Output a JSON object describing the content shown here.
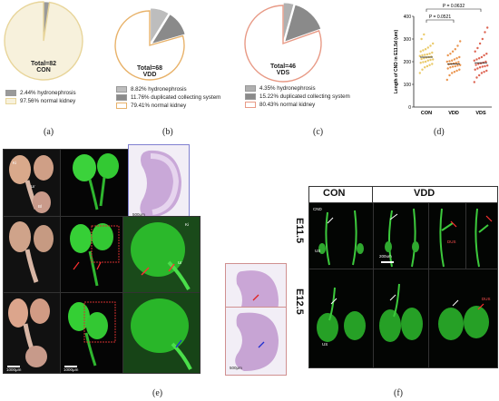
{
  "panel_labels": {
    "a": "(a)",
    "b": "(b)",
    "c": "(c)",
    "d": "(d)",
    "e": "(e)",
    "f": "(f)"
  },
  "pies": [
    {
      "group": "CON",
      "total": "Total=82",
      "colors": [
        "#8a8a8a",
        "#f5e7b8"
      ],
      "slices": [
        {
          "pct": 2.44,
          "label": "2.44%  hydronephrosis",
          "color": "#9a9a9a"
        },
        {
          "pct": 97.56,
          "label": "97.56%  normal kidney",
          "color": "#f7f1dc"
        }
      ],
      "edge": "#e8d59a"
    },
    {
      "group": "VDD",
      "total": "Total=68",
      "slices": [
        {
          "pct": 8.82,
          "label": "8.82% hydronephrosis",
          "color": "#bdbdbd"
        },
        {
          "pct": 11.76,
          "label": "11.76% duplicated collecting system",
          "color": "#8a8a8a"
        },
        {
          "pct": 79.41,
          "label": "79.41% normal kidney",
          "color": "#ffffff"
        }
      ],
      "edge": "#e8b26a"
    },
    {
      "group": "VDS",
      "total": "Total=46",
      "slices": [
        {
          "pct": 4.35,
          "label": "4.35% hydronephrosis",
          "color": "#b0b0b0"
        },
        {
          "pct": 15.22,
          "label": "15.22% duplicated collecting system",
          "color": "#8a8a8a"
        },
        {
          "pct": 80.43,
          "label": "80.43% normal kidney",
          "color": "#ffffff"
        }
      ],
      "edge": "#e89a86"
    }
  ],
  "chart_data": {
    "type": "scatter",
    "ylabel": "Length of CND in E11.5d (um)",
    "categories": [
      "CON",
      "VDD",
      "VDS"
    ],
    "ylim": [
      0,
      400
    ],
    "yticks": [
      "0",
      "100",
      "200",
      "300",
      "400"
    ],
    "pvalues": [
      {
        "text": "P = 0.0632",
        "from": "CON",
        "to": "VDS"
      },
      {
        "text": "P = 0.0521",
        "from": "CON",
        "to": "VDD"
      }
    ],
    "colors": [
      "#e8c45a",
      "#e88a3c",
      "#d9533f"
    ],
    "series": [
      {
        "values": [
          150,
          165,
          175,
          180,
          185,
          190,
          195,
          198,
          200,
          205,
          208,
          210,
          212,
          215,
          218,
          220,
          222,
          225,
          228,
          230,
          232,
          235,
          240,
          245,
          250,
          255,
          262,
          270,
          280,
          300,
          320
        ],
        "mean": 220
      },
      {
        "values": [
          120,
          140,
          150,
          155,
          160,
          165,
          170,
          175,
          178,
          180,
          183,
          185,
          188,
          190,
          192,
          195,
          198,
          200,
          202,
          205,
          210,
          215,
          220,
          228,
          235,
          245,
          255,
          270,
          290
        ],
        "mean": 190
      },
      {
        "values": [
          110,
          130,
          140,
          150,
          155,
          160,
          165,
          170,
          175,
          178,
          180,
          183,
          186,
          190,
          193,
          196,
          200,
          205,
          210,
          215,
          220,
          228,
          235,
          245,
          260,
          280,
          300,
          330,
          350
        ],
        "mean": 195
      }
    ]
  },
  "panel_e": {
    "labels": {
      "k1": "Ki",
      "ur": "Ur",
      "bl": "Bl"
    },
    "scale": [
      "1000μm",
      "1000μm",
      "500μm",
      "500μm",
      "500μm"
    ]
  },
  "panel_f": {
    "con": "CON",
    "vdd": "VDD",
    "e115": "E11.5",
    "e125": "E12.5",
    "cnd": "CND",
    "us": "US",
    "scale": "200um",
    "dup": "DUS"
  }
}
